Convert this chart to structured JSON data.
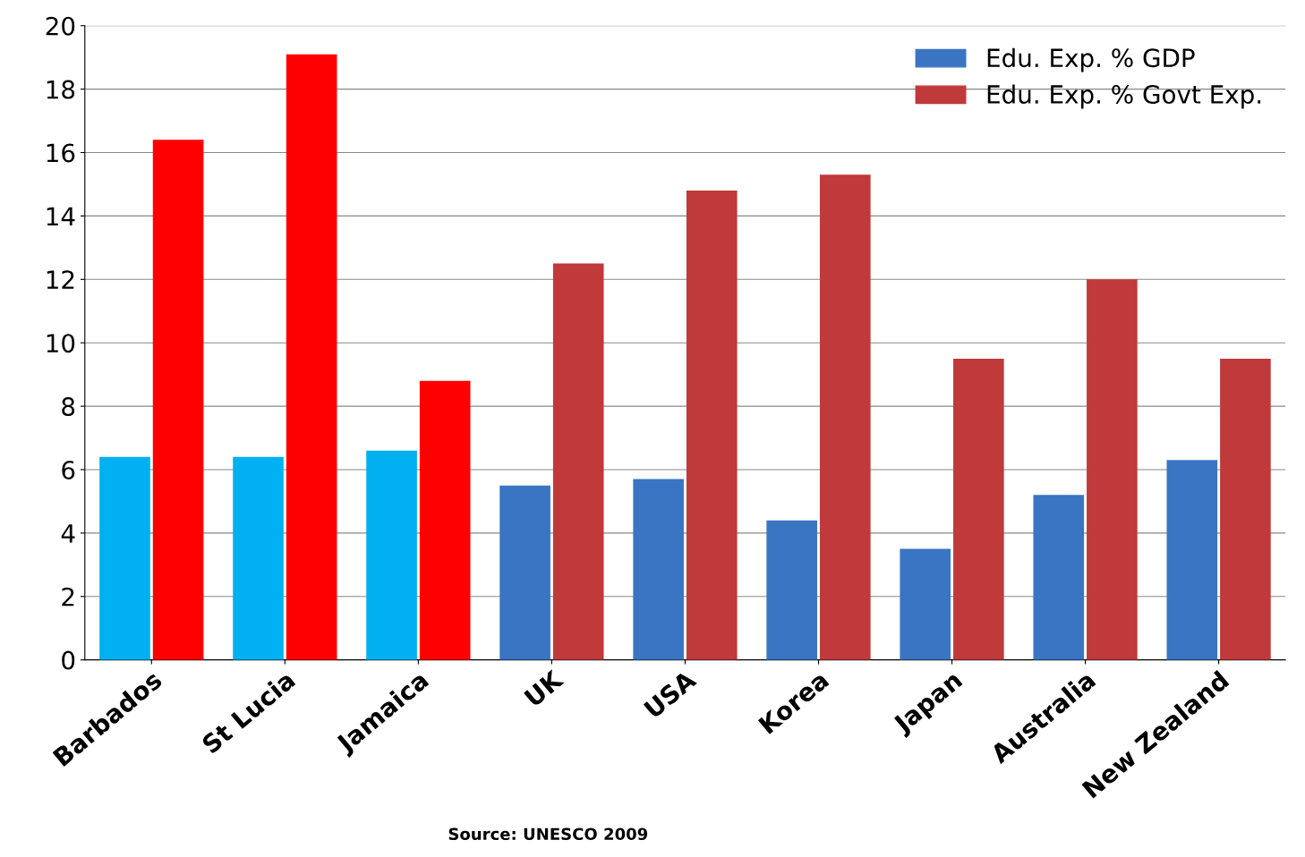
{
  "chart_data": {
    "type": "bar",
    "categories": [
      "Barbados",
      "St Lucia",
      "Jamaica",
      "UK",
      "USA",
      "Korea",
      "Japan",
      "Australia",
      "New Zealand"
    ],
    "series": [
      {
        "name": "Edu. Exp. % GDP",
        "color": "#3a75c4",
        "colors": [
          "#00b0f0",
          "#00b0f0",
          "#00b0f0",
          "#3a75c4",
          "#3a75c4",
          "#3a75c4",
          "#3a75c4",
          "#3a75c4",
          "#3a75c4"
        ],
        "values": [
          6.4,
          6.4,
          6.6,
          5.5,
          5.7,
          4.4,
          3.5,
          5.2,
          6.3
        ]
      },
      {
        "name": "Edu. Exp. % Govt Exp.",
        "color": "#c0393b",
        "colors": [
          "#ff0000",
          "#ff0000",
          "#ff0000",
          "#c0393b",
          "#c0393b",
          "#c0393b",
          "#c0393b",
          "#c0393b",
          "#c0393b"
        ],
        "values": [
          16.4,
          19.1,
          8.8,
          12.5,
          14.8,
          15.3,
          9.5,
          12.0,
          9.5
        ]
      }
    ],
    "ylim": [
      0,
      20
    ],
    "yticks": [
      0,
      2,
      4,
      6,
      8,
      10,
      12,
      14,
      16,
      18,
      20
    ],
    "grid": "y",
    "legend": "top right",
    "annotations": [
      "Source: UNESCO 2009"
    ]
  }
}
